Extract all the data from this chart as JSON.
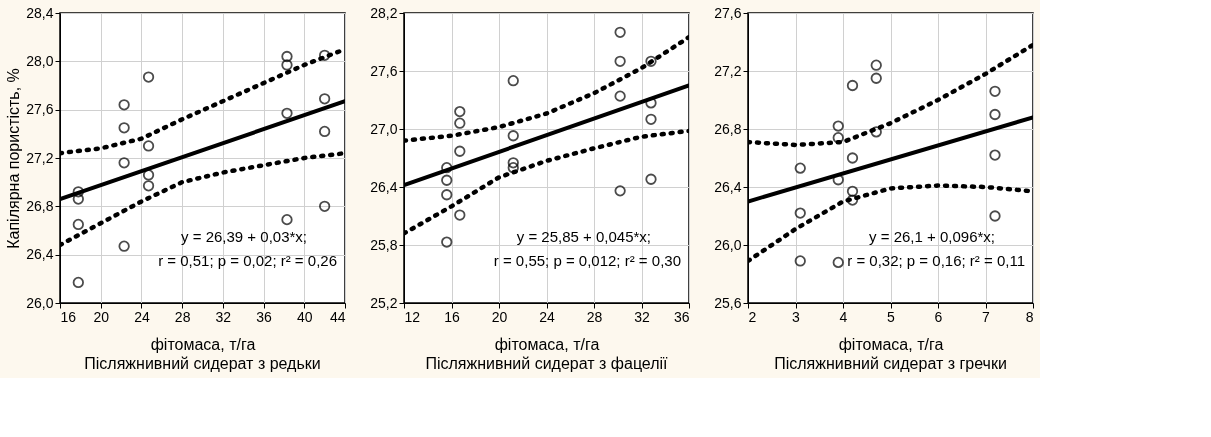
{
  "chart_data": [
    {
      "type": "scatter",
      "title": "Післяжнивний сидерат з редьки",
      "xlabel": "фітомаса, т/га",
      "ylabel": "Капілярна пористість, %",
      "xlim": [
        16,
        44
      ],
      "xticks": [
        16,
        20,
        24,
        28,
        32,
        36,
        40,
        44
      ],
      "ylim": [
        26.0,
        28.4
      ],
      "yticks": [
        {
          "value": 26.0,
          "label": "26,0"
        },
        {
          "value": 26.4,
          "label": "26,4"
        },
        {
          "value": 26.8,
          "label": "26,8"
        },
        {
          "value": 27.2,
          "label": "27,2"
        },
        {
          "value": 27.6,
          "label": "27,6"
        },
        {
          "value": 28.0,
          "label": "28,0"
        },
        {
          "value": 28.4,
          "label": "28,4"
        }
      ],
      "grid": true,
      "annotations": [
        "y = 26,39 + 0,03*x;",
        "r = 0,51; p = 0,02; r² = 0,26"
      ],
      "series": [
        {
          "marker": "circle",
          "color": "#000000",
          "x": [
            17.8,
            17.8,
            17.8,
            17.8,
            22.3,
            22.3,
            22.3,
            22.3,
            24.7,
            24.7,
            24.7,
            24.7,
            38.3,
            38.3,
            38.3,
            38.3,
            42,
            42,
            42,
            42
          ],
          "values": [
            26.92,
            26.86,
            26.65,
            26.17,
            27.64,
            27.45,
            27.16,
            26.47,
            27.87,
            27.3,
            27.06,
            26.97,
            28.04,
            27.97,
            27.57,
            26.69,
            28.05,
            27.69,
            27.42,
            26.8
          ]
        },
        {
          "type": "line",
          "line_style": "solid",
          "color": "#000000",
          "x": [
            16,
            44
          ],
          "values": [
            26.86,
            27.67
          ]
        },
        {
          "type": "line",
          "line_style": "dotted",
          "color": "#000000",
          "x": [
            16,
            20,
            24,
            28,
            32,
            36,
            40,
            44
          ],
          "values": [
            27.24,
            27.28,
            27.36,
            27.52,
            27.67,
            27.82,
            27.97,
            28.1
          ]
        },
        {
          "type": "line",
          "line_style": "dotted",
          "color": "#000000",
          "x": [
            16,
            20,
            24,
            28,
            32,
            36,
            40,
            44
          ],
          "values": [
            26.48,
            26.66,
            26.84,
            27.0,
            27.08,
            27.14,
            27.2,
            27.24
          ]
        }
      ]
    },
    {
      "type": "scatter",
      "title": "Післяжнивний сидерат з фацелії",
      "xlabel": "фітомаса, т/га",
      "xlim": [
        12,
        36
      ],
      "xticks": [
        12,
        16,
        20,
        24,
        28,
        32,
        36
      ],
      "ylim": [
        25.2,
        28.2
      ],
      "yticks": [
        {
          "value": 25.2,
          "label": "25,2"
        },
        {
          "value": 25.8,
          "label": "25,8"
        },
        {
          "value": 26.4,
          "label": "26,4"
        },
        {
          "value": 27.0,
          "label": "27,0"
        },
        {
          "value": 27.6,
          "label": "27,6"
        },
        {
          "value": 28.2,
          "label": "28,2"
        }
      ],
      "grid": true,
      "annotations": [
        "y = 25,85 + 0,045*x;",
        "r = 0,55; p = 0,012; r² = 0,30"
      ],
      "series": [
        {
          "marker": "circle",
          "color": "#000000",
          "x": [
            15.6,
            15.6,
            15.6,
            15.6,
            16.7,
            16.7,
            16.7,
            16.7,
            21.2,
            21.2,
            21.2,
            21.2,
            30.2,
            30.2,
            30.2,
            30.2,
            32.8,
            32.8,
            32.8,
            32.8
          ],
          "values": [
            26.6,
            26.47,
            26.32,
            25.83,
            27.18,
            27.06,
            26.77,
            26.11,
            27.5,
            26.93,
            26.65,
            26.6,
            28.0,
            27.7,
            27.34,
            26.36,
            27.7,
            27.27,
            27.1,
            26.48
          ]
        },
        {
          "type": "line",
          "line_style": "solid",
          "color": "#000000",
          "x": [
            12,
            36
          ],
          "values": [
            26.42,
            27.45
          ]
        },
        {
          "type": "line",
          "line_style": "dotted",
          "color": "#000000",
          "x": [
            12,
            16,
            20,
            24,
            28,
            32,
            36
          ],
          "values": [
            26.88,
            26.93,
            27.02,
            27.16,
            27.37,
            27.63,
            27.95
          ]
        },
        {
          "type": "line",
          "line_style": "dotted",
          "color": "#000000",
          "x": [
            12,
            16,
            20,
            24,
            28,
            32,
            36
          ],
          "values": [
            25.92,
            26.2,
            26.5,
            26.67,
            26.8,
            26.92,
            26.98
          ]
        }
      ]
    },
    {
      "type": "scatter",
      "title": "Післяжнивний сидерат з гречки",
      "xlabel": "фітомаса, т/га",
      "xlim": [
        2,
        8
      ],
      "xticks": [
        2,
        3,
        4,
        5,
        6,
        7,
        8
      ],
      "ylim": [
        25.6,
        27.6
      ],
      "yticks": [
        {
          "value": 25.6,
          "label": "25,6"
        },
        {
          "value": 26.0,
          "label": "26,0"
        },
        {
          "value": 26.4,
          "label": "26,4"
        },
        {
          "value": 26.8,
          "label": "26,8"
        },
        {
          "value": 27.2,
          "label": "27,2"
        },
        {
          "value": 27.6,
          "label": "27,6"
        }
      ],
      "grid": true,
      "annotations": [
        "y = 26,1 + 0,096*x;",
        "r = 0,32; p = 0,16; r² = 0,11"
      ],
      "series": [
        {
          "marker": "circle",
          "color": "#000000",
          "x": [
            3.1,
            3.1,
            3.1,
            3.9,
            3.9,
            3.9,
            3.9,
            4.2,
            4.2,
            4.2,
            4.2,
            4.7,
            4.7,
            4.7,
            7.2,
            7.2,
            7.2,
            7.2
          ],
          "values": [
            26.53,
            26.22,
            25.89,
            26.82,
            26.74,
            26.45,
            25.88,
            27.1,
            26.6,
            26.37,
            26.31,
            27.24,
            27.15,
            26.78,
            27.06,
            26.9,
            26.62,
            26.2
          ]
        },
        {
          "type": "line",
          "line_style": "solid",
          "color": "#000000",
          "x": [
            2,
            8
          ],
          "values": [
            26.3,
            26.88
          ]
        },
        {
          "type": "line",
          "line_style": "dotted",
          "color": "#000000",
          "x": [
            2,
            3,
            4,
            5,
            6,
            7,
            8
          ],
          "values": [
            26.71,
            26.69,
            26.71,
            26.84,
            27.0,
            27.18,
            27.38
          ]
        },
        {
          "type": "line",
          "line_style": "dotted",
          "color": "#000000",
          "x": [
            2,
            3,
            4,
            5,
            6,
            7,
            8
          ],
          "values": [
            25.89,
            26.11,
            26.3,
            26.39,
            26.41,
            26.4,
            26.37
          ]
        }
      ]
    }
  ]
}
